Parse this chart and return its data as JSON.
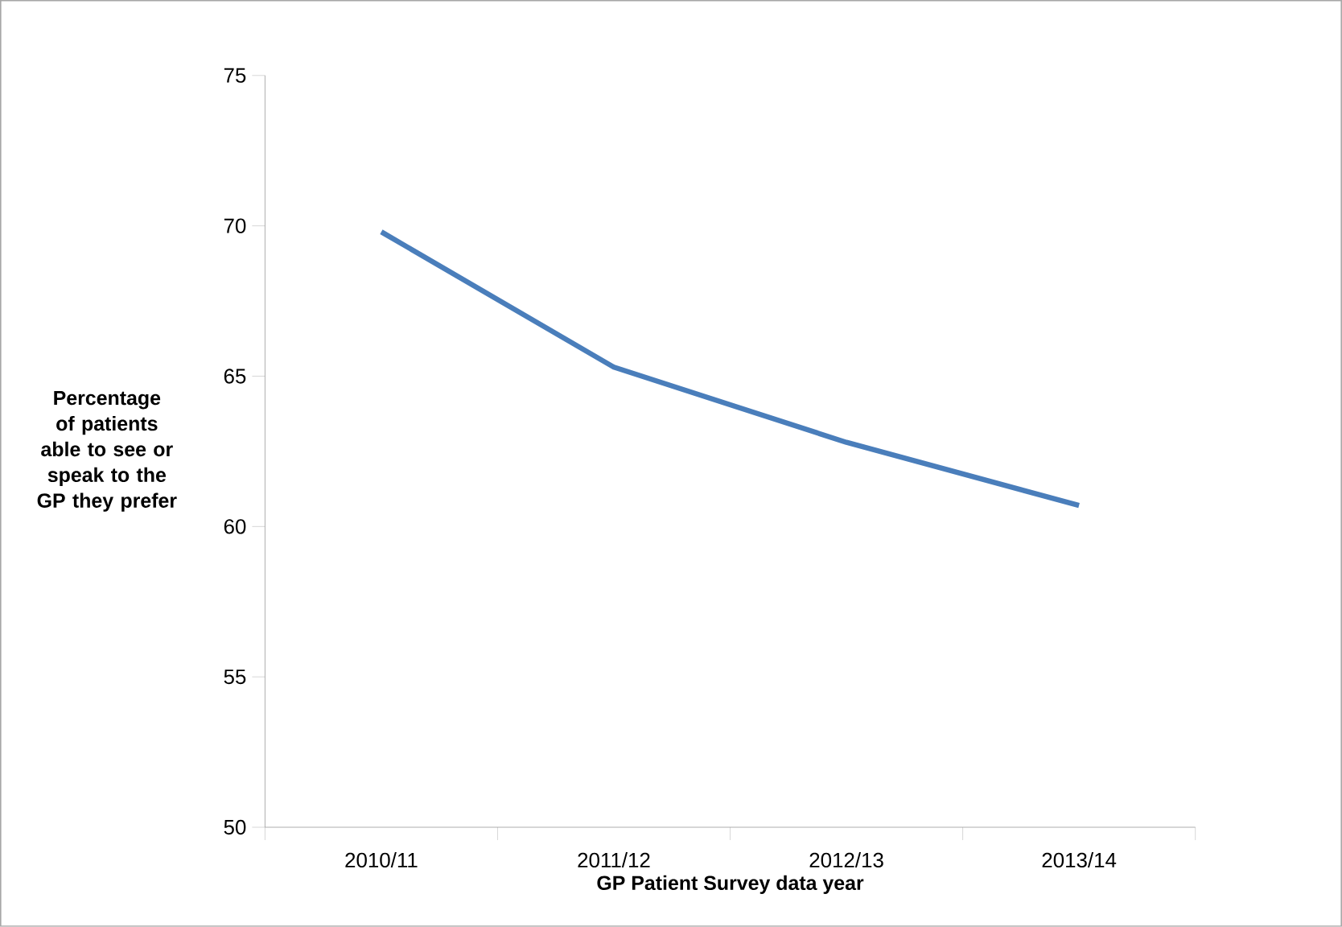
{
  "chart_data": {
    "type": "line",
    "xlabel": "GP Patient Survey data year",
    "ylabel": "Percentage of patients able to see or speak to the GP they prefer",
    "categories": [
      "2010/11",
      "2011/12",
      "2012/13",
      "2013/14"
    ],
    "series": [
      {
        "color": "#4a7ebb",
        "values": [
          69.8,
          65.3,
          62.8,
          60.7
        ]
      }
    ],
    "ylim": [
      50,
      75
    ],
    "yticks": [
      50,
      55,
      60,
      65,
      70,
      75
    ]
  }
}
